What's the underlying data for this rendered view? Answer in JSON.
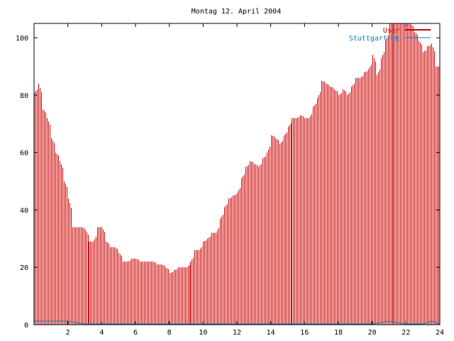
{
  "chart_data": {
    "type": "bar",
    "title": "Montag 12. April 2004",
    "xlabel": "",
    "ylabel": "",
    "xlim": [
      0,
      24
    ],
    "ylim": [
      0,
      105
    ],
    "x_ticks": [
      2,
      4,
      6,
      8,
      10,
      12,
      14,
      16,
      18,
      20,
      22,
      24
    ],
    "y_ticks": [
      0,
      20,
      40,
      60,
      80,
      100
    ],
    "legend_position": "top-right",
    "series": [
      {
        "name": "User",
        "color": "#cc0000",
        "points": [
          [
            0.0,
            81
          ],
          [
            0.25,
            84
          ],
          [
            0.5,
            75
          ],
          [
            0.75,
            72
          ],
          [
            1.0,
            65
          ],
          [
            1.25,
            60
          ],
          [
            1.5,
            57
          ],
          [
            1.75,
            50
          ],
          [
            2.0,
            44
          ],
          [
            2.25,
            34
          ],
          [
            2.5,
            34
          ],
          [
            2.75,
            34
          ],
          [
            3.0,
            33
          ],
          [
            3.25,
            29
          ],
          [
            3.5,
            29
          ],
          [
            3.75,
            34
          ],
          [
            4.0,
            34
          ],
          [
            4.25,
            29
          ],
          [
            4.5,
            27
          ],
          [
            4.75,
            27
          ],
          [
            5.0,
            25
          ],
          [
            5.25,
            22
          ],
          [
            5.5,
            22
          ],
          [
            5.75,
            23
          ],
          [
            6.0,
            23
          ],
          [
            6.25,
            22
          ],
          [
            6.5,
            22
          ],
          [
            6.75,
            22
          ],
          [
            7.0,
            22
          ],
          [
            7.25,
            21
          ],
          [
            7.5,
            21
          ],
          [
            7.75,
            20
          ],
          [
            8.0,
            18
          ],
          [
            8.25,
            19
          ],
          [
            8.5,
            20
          ],
          [
            8.75,
            20
          ],
          [
            9.0,
            20
          ],
          [
            9.25,
            22
          ],
          [
            9.5,
            26
          ],
          [
            9.75,
            26
          ],
          [
            10.0,
            29
          ],
          [
            10.25,
            30
          ],
          [
            10.5,
            32
          ],
          [
            10.75,
            32
          ],
          [
            11.0,
            37
          ],
          [
            11.25,
            41
          ],
          [
            11.5,
            44
          ],
          [
            11.75,
            45
          ],
          [
            12.0,
            46
          ],
          [
            12.25,
            51
          ],
          [
            12.5,
            55
          ],
          [
            12.75,
            57
          ],
          [
            13.0,
            56
          ],
          [
            13.25,
            55
          ],
          [
            13.5,
            58
          ],
          [
            13.75,
            60
          ],
          [
            14.0,
            66
          ],
          [
            14.25,
            65
          ],
          [
            14.5,
            63
          ],
          [
            14.75,
            66
          ],
          [
            15.0,
            69
          ],
          [
            15.25,
            72
          ],
          [
            15.5,
            72
          ],
          [
            15.75,
            73
          ],
          [
            16.0,
            72
          ],
          [
            16.25,
            72
          ],
          [
            16.5,
            76
          ],
          [
            16.75,
            79
          ],
          [
            17.0,
            85
          ],
          [
            17.25,
            84
          ],
          [
            17.5,
            83
          ],
          [
            17.75,
            82
          ],
          [
            18.0,
            80
          ],
          [
            18.25,
            82
          ],
          [
            18.5,
            80
          ],
          [
            18.75,
            83
          ],
          [
            19.0,
            86
          ],
          [
            19.25,
            86
          ],
          [
            19.5,
            88
          ],
          [
            19.75,
            89
          ],
          [
            20.0,
            94
          ],
          [
            20.25,
            87
          ],
          [
            20.5,
            93
          ],
          [
            20.75,
            99
          ],
          [
            21.0,
            105
          ],
          [
            21.25,
            105
          ],
          [
            21.5,
            105
          ],
          [
            21.75,
            105
          ],
          [
            22.0,
            105
          ],
          [
            22.25,
            105
          ],
          [
            22.5,
            102
          ],
          [
            22.75,
            99
          ],
          [
            23.0,
            95
          ],
          [
            23.25,
            97
          ],
          [
            23.5,
            98
          ],
          [
            23.75,
            90
          ]
        ]
      },
      {
        "name": "Stuttgart-Hs",
        "color": "#0080c0",
        "points": [
          [
            0.0,
            1
          ],
          [
            1.0,
            1
          ],
          [
            2.0,
            1
          ],
          [
            3.0,
            0
          ],
          [
            4.0,
            0
          ],
          [
            5.0,
            0
          ],
          [
            6.0,
            0
          ],
          [
            7.0,
            0
          ],
          [
            8.0,
            0
          ],
          [
            9.0,
            0
          ],
          [
            10.0,
            0
          ],
          [
            11.0,
            0
          ],
          [
            12.0,
            0
          ],
          [
            13.0,
            0
          ],
          [
            14.0,
            0
          ],
          [
            15.0,
            0
          ],
          [
            16.0,
            0
          ],
          [
            17.0,
            0
          ],
          [
            18.0,
            0
          ],
          [
            19.0,
            0
          ],
          [
            20.0,
            0
          ],
          [
            21.0,
            1
          ],
          [
            22.0,
            0
          ],
          [
            23.0,
            0
          ],
          [
            23.5,
            1
          ]
        ]
      }
    ]
  }
}
